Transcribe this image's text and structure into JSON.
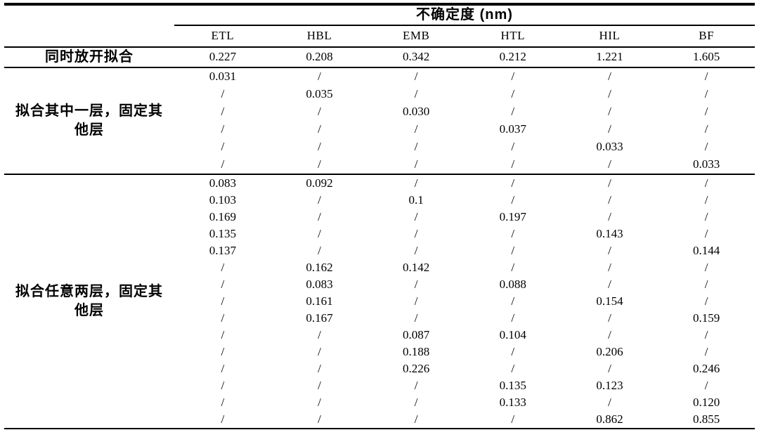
{
  "table": {
    "span_header": "不确定度 (nm)",
    "columns": [
      "ETL",
      "HBL",
      "EMB",
      "HTL",
      "HIL",
      "BF"
    ],
    "empty_marker": "/",
    "simultaneous": {
      "label": "同时放开拟合",
      "values": [
        "0.227",
        "0.208",
        "0.342",
        "0.212",
        "1.221",
        "1.605"
      ]
    },
    "section_one": {
      "label": "拟合其中一层，固定其他层",
      "rows": [
        [
          "0.031",
          "/",
          "/",
          "/",
          "/",
          "/"
        ],
        [
          "/",
          "0.035",
          "/",
          "/",
          "/",
          "/"
        ],
        [
          "/",
          "/",
          "0.030",
          "/",
          "/",
          "/"
        ],
        [
          "/",
          "/",
          "/",
          "0.037",
          "/",
          "/"
        ],
        [
          "/",
          "/",
          "/",
          "/",
          "0.033",
          "/"
        ],
        [
          "/",
          "/",
          "/",
          "/",
          "/",
          "0.033"
        ]
      ]
    },
    "section_two": {
      "label": "拟合任意两层，固定其他层",
      "rows": [
        [
          "0.083",
          "0.092",
          "/",
          "/",
          "/",
          "/"
        ],
        [
          "0.103",
          "/",
          "0.1",
          "/",
          "/",
          "/"
        ],
        [
          "0.169",
          "/",
          "/",
          "0.197",
          "/",
          "/"
        ],
        [
          "0.135",
          "/",
          "/",
          "/",
          "0.143",
          "/"
        ],
        [
          "0.137",
          "/",
          "/",
          "/",
          "/",
          "0.144"
        ],
        [
          "/",
          "0.162",
          "0.142",
          "/",
          "/",
          "/"
        ],
        [
          "/",
          "0.083",
          "/",
          "0.088",
          "/",
          "/"
        ],
        [
          "/",
          "0.161",
          "/",
          "/",
          "0.154",
          "/"
        ],
        [
          "/",
          "0.167",
          "/",
          "/",
          "/",
          "0.159"
        ],
        [
          "/",
          "/",
          "0.087",
          "0.104",
          "/",
          "/"
        ],
        [
          "/",
          "/",
          "0.188",
          "/",
          "0.206",
          "/"
        ],
        [
          "/",
          "/",
          "0.226",
          "/",
          "/",
          "0.246"
        ],
        [
          "/",
          "/",
          "/",
          "0.135",
          "0.123",
          "/"
        ],
        [
          "/",
          "/",
          "/",
          "0.133",
          "/",
          "0.120"
        ],
        [
          "/",
          "/",
          "/",
          "/",
          "0.862",
          "0.855"
        ]
      ]
    },
    "colors": {
      "text": "#000000",
      "rule": "#000000",
      "background": "#ffffff"
    }
  }
}
